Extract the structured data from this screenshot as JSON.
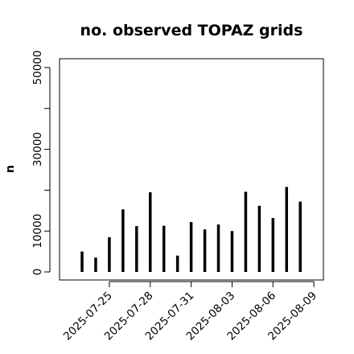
{
  "chart_data": {
    "type": "bar",
    "title": "no. observed TOPAZ grids",
    "xlabel": "",
    "ylabel": "n",
    "ylim": [
      0,
      50000
    ],
    "yticks": [
      0,
      10000,
      30000,
      50000
    ],
    "yticks_minor": [
      20000,
      40000
    ],
    "x": [
      "2025-07-23",
      "2025-07-24",
      "2025-07-25",
      "2025-07-26",
      "2025-07-27",
      "2025-07-28",
      "2025-07-29",
      "2025-07-30",
      "2025-07-31",
      "2025-08-01",
      "2025-08-02",
      "2025-08-03",
      "2025-08-04",
      "2025-08-05",
      "2025-08-06",
      "2025-08-07",
      "2025-08-08",
      "2025-08-09"
    ],
    "values": [
      5000,
      3500,
      8500,
      15300,
      11200,
      19500,
      11300,
      4000,
      12200,
      10400,
      11600,
      10000,
      19600,
      16200,
      13200,
      20800,
      17200,
      0
    ],
    "xtick_labels": [
      "2025-07-25",
      "2025-07-28",
      "2025-07-31",
      "2025-08-03",
      "2025-08-06",
      "2025-08-09"
    ],
    "xtick_colors": [
      "#000000",
      "#000000",
      "#228B22",
      "#000000",
      "#000000",
      "#000000"
    ],
    "bar_color": "#000000",
    "grid": false
  }
}
